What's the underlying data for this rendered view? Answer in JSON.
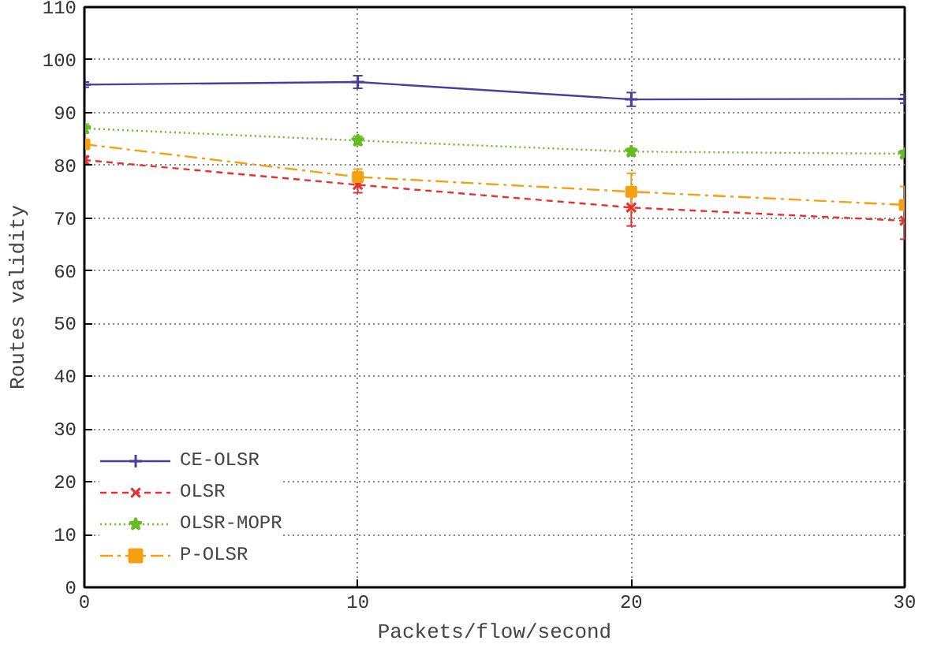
{
  "chart_data": {
    "type": "line",
    "xlabel": "Packets/flow/second",
    "ylabel": "Routes validity",
    "x": [
      0,
      10,
      20,
      30
    ],
    "xlim": [
      0,
      30
    ],
    "xticks": [
      0,
      10,
      20,
      30
    ],
    "ylim": [
      0,
      110
    ],
    "yticks": [
      0,
      10,
      20,
      30,
      40,
      50,
      60,
      70,
      80,
      90,
      100,
      110
    ],
    "grid": true,
    "legend": "bottom left",
    "series": [
      {
        "name": "CE-OLSR",
        "color": "#4b3ca0",
        "values": [
          95.3,
          95.8,
          92.5,
          92.6
        ],
        "errors": [
          0.5,
          1.2,
          1.3,
          0.8
        ],
        "marker": "cross",
        "line_style": "solid"
      },
      {
        "name": "OLSR",
        "color": "#e83030",
        "values": [
          81,
          76.3,
          72,
          69.5
        ],
        "errors": [
          0.7,
          1.5,
          3.5,
          3.5
        ],
        "marker": "x",
        "line_style": "dashed"
      },
      {
        "name": "OLSR-MOPR",
        "color": "#66bb22",
        "values": [
          87,
          84.7,
          82.6,
          82.2
        ],
        "errors": [
          0.8,
          0.8,
          0.6,
          0.6
        ],
        "marker": "star",
        "line_style": "dotted"
      },
      {
        "name": "P-OLSR",
        "color": "#f5a010",
        "values": [
          84,
          77.8,
          75,
          72.5
        ],
        "errors": [
          0.6,
          1.5,
          3.5,
          3.5
        ],
        "marker": "square",
        "line_style": "dashdot"
      }
    ]
  }
}
